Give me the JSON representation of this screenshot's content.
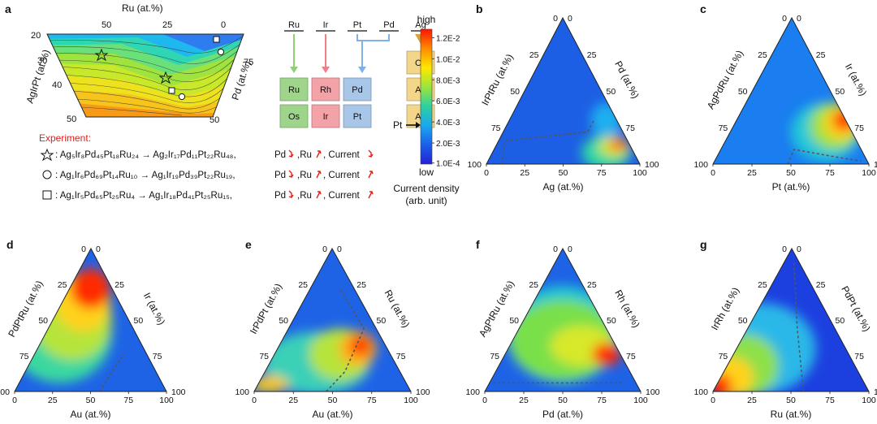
{
  "panels": {
    "a": "a",
    "b": "b",
    "c": "c",
    "d": "d",
    "e": "e",
    "f": "f",
    "g": "g"
  },
  "panel_a": {
    "top_axis_label": "Ru (at.%)",
    "top_ticks": [
      "50",
      "25",
      "0"
    ],
    "left_axis_label": "AgIrPt (at.%)",
    "left_ticks": [
      "20",
      "30",
      "40",
      "50"
    ],
    "right_axis_label": "Pd (at.%)",
    "right_ticks": [
      "75",
      "50"
    ],
    "experiment_title": "Experiment:",
    "experiments": [
      {
        "marker": "star",
        "from": "Ag5Ir8Pd45Pt18Ru24",
        "to": "Ag2Ir17Pd11Pt22Ru48",
        "pd": "Pd",
        "ru": ",Ru",
        "current": ", Current",
        "current_trend": "down"
      },
      {
        "marker": "circle",
        "from": "Ag1Ir6Pd69Pt14Ru10",
        "to": "Ag1Ir19Pd39Pt22Ru19",
        "pd": "Pd",
        "ru": ",Ru",
        "current": ", Current",
        "current_trend": "up"
      },
      {
        "marker": "square",
        "from": "Ag1Ir5Pd65Pt25Ru4",
        "to": "Ag1Ir18Pd41Pt25Ru15",
        "pd": "Pd",
        "ru": ",Ru",
        "current": ", Current",
        "current_trend": "up"
      }
    ],
    "experiment_text": [
      ": Ag₅Ir₈Pd₄₅Pt₁₈Ru₂₄  →  Ag₂Ir₁₇Pd₁₁Pt₂₂Ru₄₈,",
      ": Ag₁Ir₆Pd₆₉Pt₁₄Ru₁₀  →  Ag₁Ir₁₉Pd₃₉Pt₂₂Ru₁₉,",
      ": Ag₁Ir₅Pd₆₅Pt₂₅Ru₄  →  Ag₁Ir₁₈Pd₄₁Pt₂₅Ru₁₅,"
    ],
    "periodic": {
      "headers": [
        "Ru",
        "Ir",
        "Pt",
        "Pd",
        "Ag"
      ],
      "cells": [
        {
          "sym": "Cu",
          "col": 4,
          "row": 0,
          "color": "#f3d68a"
        },
        {
          "sym": "Ru",
          "col": 0,
          "row": 1,
          "color": "#9fd58b"
        },
        {
          "sym": "Rh",
          "col": 1,
          "row": 1,
          "color": "#f3a3a8"
        },
        {
          "sym": "Pd",
          "col": 2,
          "row": 1,
          "color": "#a8c6e8"
        },
        {
          "sym": "Ag",
          "col": 4,
          "row": 1,
          "color": "#f3d68a"
        },
        {
          "sym": "Os",
          "col": 0,
          "row": 2,
          "color": "#9fd58b"
        },
        {
          "sym": "Ir",
          "col": 1,
          "row": 2,
          "color": "#f3a3a8"
        },
        {
          "sym": "Pt",
          "col": 2,
          "row": 2,
          "color": "#a8c6e8"
        },
        {
          "sym": "Au",
          "col": 4,
          "row": 2,
          "color": "#f3d68a"
        }
      ]
    }
  },
  "colorbar": {
    "high": "high",
    "low": "low",
    "ticks": [
      "1.2E-2",
      "1.0E-2",
      "8.0E-3",
      "6.0E-3",
      "4.0E-3",
      "2.0E-3",
      "1.0E-4"
    ],
    "tick_values": [
      0.012,
      0.01,
      0.008,
      0.006,
      0.004,
      0.002,
      0.0001
    ],
    "pt_label": "Pt",
    "title_line1": "Current density",
    "title_line2": "(arb. unit)",
    "colors": [
      "#ff1500",
      "#ff8a00",
      "#ffe800",
      "#9be43c",
      "#2fd0a0",
      "#1aa8ee",
      "#1c5fe8",
      "#2222d6"
    ]
  },
  "chart_data": [
    {
      "panel": "b",
      "type": "heatmap",
      "bottom_label": "Ag (at.%)",
      "left_label": "IrPtRu (at.%)",
      "right_label": "Pd (at.%)",
      "ticks": [
        "0",
        "25",
        "50",
        "75",
        "100"
      ],
      "hotspot": "right edge near Pd 25 at.%",
      "max_color": "#ff3000"
    },
    {
      "panel": "c",
      "type": "heatmap",
      "bottom_label": "Pt (at.%)",
      "left_label": "AgPdRu (at.%)",
      "right_label": "Ir (at.%)",
      "ticks": [
        "0",
        "25",
        "50",
        "75",
        "100"
      ],
      "hotspot": "right edge Ir 25-50 at.%",
      "max_color": "#ff1500"
    },
    {
      "panel": "d",
      "type": "heatmap",
      "bottom_label": "Au (at.%)",
      "left_label": "PdPtRu (at.%)",
      "right_label": "Ir (at.%)",
      "ticks": [
        "0",
        "25",
        "50",
        "75",
        "100"
      ],
      "hotspot": "top region Ir-rich",
      "max_color": "#ff1500"
    },
    {
      "panel": "e",
      "type": "heatmap",
      "bottom_label": "Au (at.%)",
      "left_label": "IrPdPt (at.%)",
      "right_label": "Ru (at.%)",
      "ticks": [
        "0",
        "25",
        "50",
        "75",
        "100"
      ],
      "hotspot": "right edge near Ru 50 at.%",
      "max_color": "#ff2000"
    },
    {
      "panel": "f",
      "type": "heatmap",
      "bottom_label": "Pd (at.%)",
      "left_label": "AgPtRu (at.%)",
      "right_label": "Rh (at.%)",
      "ticks": [
        "0",
        "25",
        "50",
        "75",
        "100"
      ],
      "hotspot": "right edge near Rh 30 at.%",
      "max_color": "#ff1500"
    },
    {
      "panel": "g",
      "type": "heatmap",
      "bottom_label": "Ru (at.%)",
      "left_label": "IrRh (at.%)",
      "right_label": "PdPt (at.%)",
      "ticks": [
        "0",
        "25",
        "50",
        "75",
        "100"
      ],
      "hotspot": "bottom-left corner",
      "max_color": "#ff1500"
    }
  ]
}
